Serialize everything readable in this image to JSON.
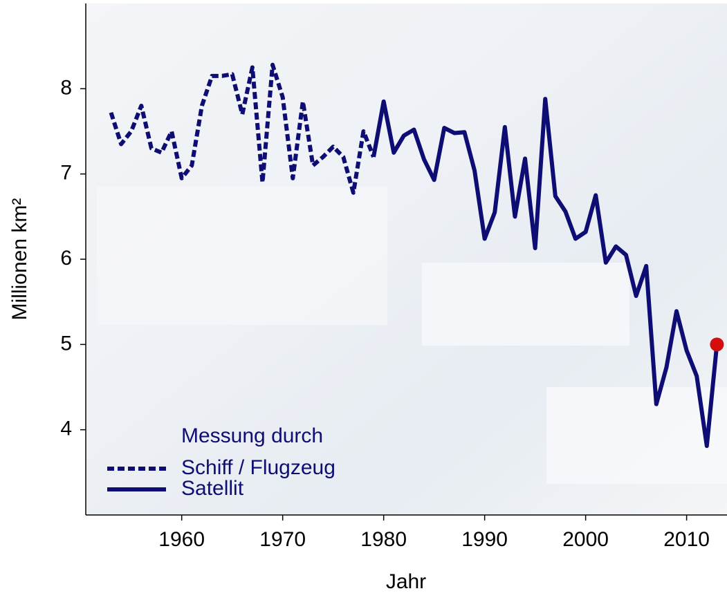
{
  "chart_data": {
    "type": "line",
    "xlabel": "Jahr",
    "ylabel": "Millionen km²",
    "legend_title": "Messung durch",
    "xlim": [
      1950.5,
      2014
    ],
    "xticks": [
      1960,
      1970,
      1980,
      1990,
      2000,
      2010
    ],
    "ylim": [
      3,
      9
    ],
    "yticks": [
      4,
      5,
      6,
      7,
      8
    ],
    "series": [
      {
        "name": "Schiff / Flugzeug",
        "color": "#0d0d73",
        "dash": true,
        "x": [
          1953,
          1954,
          1955,
          1956,
          1957,
          1958,
          1959,
          1960,
          1961,
          1962,
          1963,
          1964,
          1965,
          1966,
          1967,
          1968,
          1969,
          1970,
          1971,
          1972,
          1973,
          1974,
          1975,
          1976,
          1977,
          1978,
          1979
        ],
        "values": [
          7.72,
          7.35,
          7.5,
          7.8,
          7.3,
          7.25,
          7.5,
          6.95,
          7.1,
          7.8,
          8.15,
          8.15,
          8.17,
          7.7,
          8.25,
          6.9,
          8.28,
          7.9,
          6.95,
          7.85,
          7.1,
          7.2,
          7.32,
          7.2,
          6.78,
          7.5,
          7.2
        ]
      },
      {
        "name": "Satellit",
        "color": "#0d0d73",
        "dash": false,
        "x": [
          1979,
          1980,
          1981,
          1982,
          1983,
          1984,
          1985,
          1986,
          1987,
          1988,
          1989,
          1990,
          1991,
          1992,
          1993,
          1994,
          1995,
          1996,
          1997,
          1998,
          1999,
          2000,
          2001,
          2002,
          2003,
          2004,
          2005,
          2006,
          2007,
          2008,
          2009,
          2010,
          2011,
          2012,
          2013
        ],
        "values": [
          7.2,
          7.85,
          7.25,
          7.45,
          7.52,
          7.17,
          6.93,
          7.54,
          7.48,
          7.49,
          7.04,
          6.24,
          6.55,
          7.55,
          6.5,
          7.18,
          6.13,
          7.88,
          6.74,
          6.56,
          6.24,
          6.32,
          6.75,
          5.96,
          6.15,
          6.05,
          5.57,
          5.92,
          4.3,
          4.73,
          5.39,
          4.93,
          4.63,
          3.81,
          5.0
        ]
      }
    ],
    "highlight": {
      "x": 2013,
      "y": 5.0,
      "color": "#d40d0d"
    }
  }
}
